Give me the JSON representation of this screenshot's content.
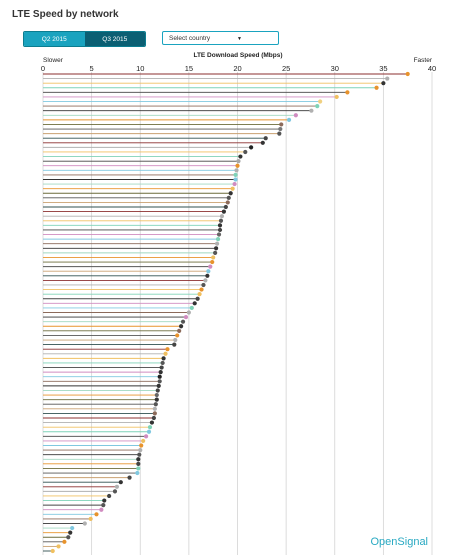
{
  "page_title": "LTE Speed by network",
  "toggle": {
    "q2_label": "Q2 2015",
    "q3_label": "Q3 2015",
    "active": "Q2 2015"
  },
  "country_select": {
    "value": "Select country"
  },
  "brand": {
    "part1": "Open",
    "part2": "Signal"
  },
  "chart_data": {
    "type": "scatter",
    "subtype": "lollipop",
    "title": "LTE Download Speed (Mbps)",
    "left_end_label": "Slower",
    "right_end_label": "Faster",
    "xlim": [
      0,
      40
    ],
    "x_ticks": [
      0,
      5,
      10,
      15,
      20,
      25,
      30,
      35,
      40
    ],
    "x_tick_labels": [
      "0",
      "5",
      "10",
      "15",
      "20",
      "25",
      "30",
      "35",
      "40"
    ],
    "grid": true,
    "values": [
      37.5,
      35.4,
      35.0,
      34.3,
      31.3,
      30.2,
      28.5,
      28.2,
      27.6,
      26.0,
      25.3,
      24.5,
      24.4,
      24.3,
      22.9,
      22.6,
      21.4,
      20.8,
      20.3,
      20.1,
      20.0,
      19.9,
      19.8,
      19.8,
      19.7,
      19.5,
      19.3,
      19.1,
      19.0,
      18.8,
      18.6,
      18.4,
      18.3,
      18.2,
      18.2,
      18.1,
      18.0,
      17.9,
      17.8,
      17.7,
      17.5,
      17.4,
      17.2,
      17.0,
      16.9,
      16.7,
      16.5,
      16.3,
      16.1,
      15.9,
      15.6,
      15.3,
      15.0,
      14.7,
      14.4,
      14.2,
      14.0,
      13.8,
      13.6,
      13.5,
      12.8,
      12.6,
      12.4,
      12.3,
      12.2,
      12.1,
      12.0,
      12.0,
      11.9,
      11.8,
      11.7,
      11.7,
      11.6,
      11.5,
      11.5,
      11.4,
      11.2,
      11.0,
      10.9,
      10.6,
      10.3,
      10.1,
      10.0,
      9.9,
      9.8,
      9.8,
      9.8,
      9.7,
      8.9,
      8.0,
      7.6,
      7.4,
      6.8,
      6.3,
      6.2,
      6.0,
      5.5,
      4.9,
      4.3,
      3.0,
      2.8,
      2.6,
      2.2,
      1.6,
      1.0
    ],
    "point_colors": [
      "#e8932c",
      "#b0b0b0",
      "#333333",
      "#e8932c",
      "#e8932c",
      "#f0c060",
      "#f0d080",
      "#7fd3b8",
      "#b0b0b0",
      "#d08cc0",
      "#80c8e0",
      "#8c6a5a",
      "#777777",
      "#555555",
      "#444444",
      "#333333",
      "#222222",
      "#555555",
      "#333333",
      "#a8a8a8",
      "#e8932c",
      "#b0b0b0",
      "#7fd3b8",
      "#80c8e0",
      "#d08cc0",
      "#f0c060",
      "#333333",
      "#555555",
      "#8c6a5a",
      "#444444",
      "#333333",
      "#b0b0b0",
      "#555555",
      "#333333",
      "#444444",
      "#666666",
      "#7fd3b8",
      "#b0b0b0",
      "#333333",
      "#555555",
      "#f0c060",
      "#e8932c",
      "#d08cc0",
      "#80c8e0",
      "#333333",
      "#b0b0b0",
      "#555555",
      "#e8932c",
      "#f0c060",
      "#444444",
      "#333333",
      "#7fd3b8",
      "#b0b0b0",
      "#d08cc0",
      "#555555",
      "#333333",
      "#8c6a5a",
      "#e8932c",
      "#b0b0b0",
      "#444444",
      "#e8932c",
      "#f0c060",
      "#333333",
      "#555555",
      "#444444",
      "#333333",
      "#222222",
      "#555555",
      "#333333",
      "#444444",
      "#666666",
      "#333333",
      "#555555",
      "#b0b0b0",
      "#8c6a5a",
      "#444444",
      "#333333",
      "#7fd3b8",
      "#80c8e0",
      "#d08cc0",
      "#f0c060",
      "#e8932c",
      "#b0b0b0",
      "#555555",
      "#333333",
      "#444444",
      "#7fd3b8",
      "#80c8e0",
      "#444444",
      "#333333",
      "#b0b0b0",
      "#555555",
      "#444444",
      "#333333",
      "#555555",
      "#d08cc0",
      "#e8932c",
      "#f0c060",
      "#b0b0b0",
      "#80c8e0",
      "#333333",
      "#555555",
      "#e8932c",
      "#f0c060",
      "#f0c060"
    ]
  }
}
